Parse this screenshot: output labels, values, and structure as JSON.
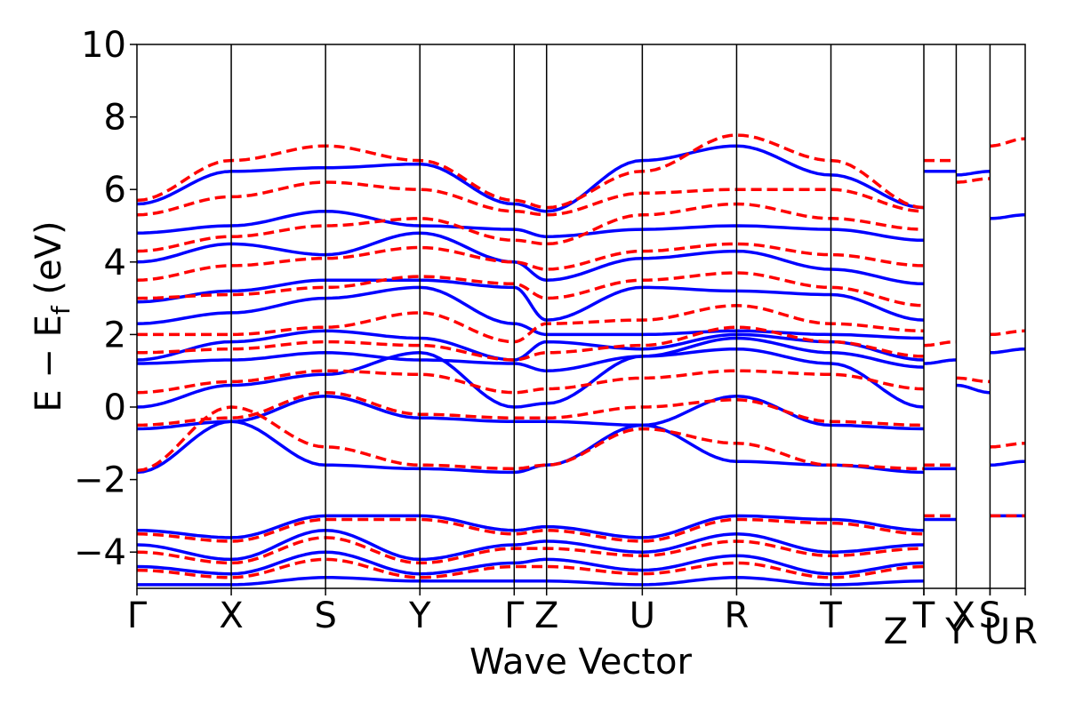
{
  "chart_data": {
    "type": "line",
    "title": "",
    "xlabel": "Wave Vector",
    "ylabel_parts": {
      "base": "E − E",
      "subscript": "f",
      "unit": " (eV)"
    },
    "ylim": [
      -5,
      10
    ],
    "yticks": [
      -4,
      -2,
      0,
      2,
      4,
      6,
      8,
      10
    ],
    "yticklabels": [
      "−4",
      "−2",
      "0",
      "2",
      "4",
      "6",
      "8",
      "10"
    ],
    "xlim": [
      0,
      6.31
    ],
    "kpath": [
      {
        "label": "Γ",
        "x": 0.0
      },
      {
        "label": "X",
        "x": 0.67
      },
      {
        "label": "S",
        "x": 1.34
      },
      {
        "label": "Y",
        "x": 2.01
      },
      {
        "label": "Γ",
        "x": 2.68
      },
      {
        "label": "Z",
        "x": 2.91
      },
      {
        "label": "U",
        "x": 3.59
      },
      {
        "label": "R",
        "x": 4.26
      },
      {
        "label": "T",
        "x": 4.93
      },
      {
        "label": "Z",
        "x": 5.59
      },
      {
        "label": "T",
        "x": 5.59
      },
      {
        "label": "Y",
        "x": 5.82
      },
      {
        "label": "X",
        "x": 5.82
      },
      {
        "label": "U",
        "x": 6.06
      },
      {
        "label": "S",
        "x": 6.06
      },
      {
        "label": "R",
        "x": 6.31
      }
    ],
    "tick_label_offsets": {
      "9": -0.2,
      "10": 0.0,
      "11": 0.0,
      "12": 0.05,
      "13": 0.05,
      "14": 0.0,
      "15": 0.0
    },
    "path_breaks": [
      5.59,
      5.82,
      6.06
    ],
    "series": [
      {
        "style": "solid",
        "color": "#0000ff",
        "bands": [
          {
            "x": [
              0,
              0.67,
              1.34,
              2.01,
              2.68,
              2.91,
              3.59,
              4.26,
              4.93,
              5.59
            ],
            "y": [
              -1.8,
              -0.4,
              -1.6,
              -1.7,
              -1.8,
              -1.6,
              -0.5,
              -1.5,
              -1.6,
              -1.8
            ]
          },
          {
            "x": [
              0,
              0.67,
              1.34,
              2.01,
              2.68,
              2.91,
              3.59,
              4.26,
              4.93,
              5.59
            ],
            "y": [
              -0.6,
              -0.4,
              0.3,
              -0.3,
              -0.4,
              -0.4,
              -0.5,
              0.3,
              -0.5,
              -0.6
            ]
          },
          {
            "x": [
              0,
              0.67,
              1.34,
              2.01,
              2.68,
              2.91,
              3.59,
              4.26,
              4.93,
              5.59
            ],
            "y": [
              0.0,
              0.6,
              0.9,
              1.5,
              0.0,
              0.1,
              1.4,
              1.6,
              1.2,
              0.0
            ]
          },
          {
            "x": [
              0,
              0.67,
              1.34,
              2.01,
              2.68,
              2.91,
              3.59,
              4.26,
              4.93,
              5.59
            ],
            "y": [
              1.2,
              1.3,
              1.5,
              1.3,
              1.2,
              1.0,
              1.4,
              1.9,
              1.5,
              1.1
            ]
          },
          {
            "x": [
              0,
              0.67,
              1.34,
              2.01,
              2.68,
              2.91,
              3.59,
              4.26,
              4.93,
              5.59
            ],
            "y": [
              1.3,
              1.8,
              2.1,
              1.9,
              1.3,
              1.8,
              1.6,
              2.0,
              1.8,
              1.3
            ]
          },
          {
            "x": [
              0,
              0.67,
              1.34,
              2.01,
              2.68,
              2.91,
              3.59,
              4.26,
              4.93,
              5.59
            ],
            "y": [
              2.3,
              2.6,
              3.0,
              3.3,
              2.3,
              2.0,
              2.0,
              2.1,
              2.0,
              1.9
            ]
          },
          {
            "x": [
              0,
              0.67,
              1.34,
              2.01,
              2.68,
              2.91,
              3.59,
              4.26,
              4.93,
              5.59
            ],
            "y": [
              2.9,
              3.2,
              3.5,
              3.5,
              3.3,
              2.4,
              3.3,
              3.2,
              3.1,
              2.4
            ]
          },
          {
            "x": [
              0,
              0.67,
              1.34,
              2.01,
              2.68,
              2.91,
              3.59,
              4.26,
              4.93,
              5.59
            ],
            "y": [
              4.0,
              4.5,
              4.2,
              4.8,
              4.0,
              3.5,
              4.1,
              4.3,
              3.8,
              3.4
            ]
          },
          {
            "x": [
              0,
              0.67,
              1.34,
              2.01,
              2.68,
              2.91,
              3.59,
              4.26,
              4.93,
              5.59
            ],
            "y": [
              4.8,
              5.0,
              5.4,
              5.0,
              4.9,
              4.7,
              4.9,
              5.0,
              4.9,
              4.6
            ]
          },
          {
            "x": [
              0,
              0.67,
              1.34,
              2.01,
              2.68,
              2.91,
              3.59,
              4.26,
              4.93,
              5.59
            ],
            "y": [
              5.6,
              6.5,
              6.6,
              6.7,
              5.6,
              5.4,
              6.8,
              7.2,
              6.4,
              5.5
            ]
          },
          {
            "x": [
              0,
              0.67,
              1.34,
              2.01,
              2.68,
              2.91,
              3.59,
              4.26,
              4.93,
              5.59
            ],
            "y": [
              -3.4,
              -3.6,
              -3.0,
              -3.0,
              -3.4,
              -3.3,
              -3.6,
              -3.0,
              -3.1,
              -3.4
            ]
          },
          {
            "x": [
              0,
              0.67,
              1.34,
              2.01,
              2.68,
              2.91,
              3.59,
              4.26,
              4.93,
              5.59
            ],
            "y": [
              -3.8,
              -4.2,
              -3.4,
              -4.2,
              -3.8,
              -3.7,
              -4.0,
              -3.5,
              -4.0,
              -3.8
            ]
          },
          {
            "x": [
              0,
              0.67,
              1.34,
              2.01,
              2.68,
              2.91,
              3.59,
              4.26,
              4.93,
              5.59
            ],
            "y": [
              -4.4,
              -4.6,
              -4.0,
              -4.6,
              -4.3,
              -4.2,
              -4.5,
              -4.1,
              -4.6,
              -4.3
            ]
          },
          {
            "x": [
              0,
              0.67,
              1.34,
              2.01,
              2.68,
              2.91,
              3.59,
              4.26,
              4.93,
              5.59
            ],
            "y": [
              -4.9,
              -4.9,
              -4.7,
              -4.8,
              -4.8,
              -4.8,
              -4.9,
              -4.7,
              -4.9,
              -4.8
            ]
          },
          {
            "x": [
              5.59,
              5.82
            ],
            "y": [
              -1.7,
              -1.7
            ]
          },
          {
            "x": [
              5.59,
              5.82
            ],
            "y": [
              1.2,
              1.3
            ]
          },
          {
            "x": [
              5.59,
              5.82
            ],
            "y": [
              6.5,
              6.5
            ]
          },
          {
            "x": [
              5.59,
              5.82
            ],
            "y": [
              -3.1,
              -3.1
            ]
          },
          {
            "x": [
              5.82,
              6.06
            ],
            "y": [
              0.6,
              0.4
            ]
          },
          {
            "x": [
              5.82,
              6.06
            ],
            "y": [
              6.4,
              6.5
            ]
          },
          {
            "x": [
              6.06,
              6.31
            ],
            "y": [
              -1.6,
              -1.5
            ]
          },
          {
            "x": [
              6.06,
              6.31
            ],
            "y": [
              1.5,
              1.6
            ]
          },
          {
            "x": [
              6.06,
              6.31
            ],
            "y": [
              5.2,
              5.3
            ]
          },
          {
            "x": [
              6.06,
              6.31
            ],
            "y": [
              -3.0,
              -3.0
            ]
          }
        ]
      },
      {
        "style": "dashed",
        "color": "#ff0000",
        "bands": [
          {
            "x": [
              0,
              0.67,
              1.34,
              2.01,
              2.68,
              2.91,
              3.59,
              4.26,
              4.93,
              5.59
            ],
            "y": [
              -1.75,
              0.0,
              -1.1,
              -1.6,
              -1.7,
              -1.6,
              -0.6,
              -1.0,
              -1.6,
              -1.7
            ]
          },
          {
            "x": [
              0,
              0.67,
              1.34,
              2.01,
              2.68,
              2.91,
              3.59,
              4.26,
              4.93,
              5.59
            ],
            "y": [
              -0.5,
              -0.3,
              0.4,
              -0.2,
              -0.3,
              -0.3,
              0.0,
              0.2,
              -0.4,
              -0.5
            ]
          },
          {
            "x": [
              0,
              0.67,
              1.34,
              2.01,
              2.68,
              2.91,
              3.59,
              4.26,
              4.93,
              5.59
            ],
            "y": [
              0.4,
              0.7,
              1.0,
              0.9,
              0.4,
              0.5,
              0.8,
              1.0,
              0.9,
              0.5
            ]
          },
          {
            "x": [
              0,
              0.67,
              1.34,
              2.01,
              2.68,
              2.91,
              3.59,
              4.26,
              4.93,
              5.59
            ],
            "y": [
              1.5,
              1.6,
              1.8,
              1.7,
              1.3,
              1.5,
              1.7,
              2.2,
              1.8,
              1.4
            ]
          },
          {
            "x": [
              0,
              0.67,
              1.34,
              2.01,
              2.68,
              2.91,
              3.59,
              4.26,
              4.93,
              5.59
            ],
            "y": [
              2.0,
              2.0,
              2.2,
              2.6,
              1.8,
              2.3,
              2.4,
              2.8,
              2.3,
              2.1
            ]
          },
          {
            "x": [
              0,
              0.67,
              1.34,
              2.01,
              2.68,
              2.91,
              3.59,
              4.26,
              4.93,
              5.59
            ],
            "y": [
              3.0,
              3.1,
              3.3,
              3.6,
              3.4,
              3.0,
              3.5,
              3.7,
              3.3,
              2.8
            ]
          },
          {
            "x": [
              0,
              0.67,
              1.34,
              2.01,
              2.68,
              2.91,
              3.59,
              4.26,
              4.93,
              5.59
            ],
            "y": [
              3.5,
              3.9,
              4.1,
              4.4,
              4.0,
              3.8,
              4.3,
              4.5,
              4.2,
              3.9
            ]
          },
          {
            "x": [
              0,
              0.67,
              1.34,
              2.01,
              2.68,
              2.91,
              3.59,
              4.26,
              4.93,
              5.59
            ],
            "y": [
              4.3,
              4.7,
              5.0,
              5.2,
              4.6,
              4.5,
              5.3,
              5.6,
              5.2,
              4.9
            ]
          },
          {
            "x": [
              0,
              0.67,
              1.34,
              2.01,
              2.68,
              2.91,
              3.59,
              4.26,
              4.93,
              5.59
            ],
            "y": [
              5.3,
              5.8,
              6.2,
              6.0,
              5.4,
              5.3,
              5.9,
              6.0,
              6.0,
              5.4
            ]
          },
          {
            "x": [
              0,
              0.67,
              1.34,
              2.01,
              2.68,
              2.91,
              3.59,
              4.26,
              4.93,
              5.59
            ],
            "y": [
              5.7,
              6.8,
              7.2,
              6.8,
              5.7,
              5.5,
              6.5,
              7.5,
              6.8,
              5.5
            ]
          },
          {
            "x": [
              0,
              0.67,
              1.34,
              2.01,
              2.68,
              2.91,
              3.59,
              4.26,
              4.93,
              5.59
            ],
            "y": [
              -3.5,
              -3.7,
              -3.1,
              -3.1,
              -3.5,
              -3.4,
              -3.7,
              -3.1,
              -3.2,
              -3.5
            ]
          },
          {
            "x": [
              0,
              0.67,
              1.34,
              2.01,
              2.68,
              2.91,
              3.59,
              4.26,
              4.93,
              5.59
            ],
            "y": [
              -4.0,
              -4.3,
              -3.6,
              -4.3,
              -3.9,
              -3.9,
              -4.1,
              -3.7,
              -4.1,
              -3.9
            ]
          },
          {
            "x": [
              0,
              0.67,
              1.34,
              2.01,
              2.68,
              2.91,
              3.59,
              4.26,
              4.93,
              5.59
            ],
            "y": [
              -4.5,
              -4.7,
              -4.2,
              -4.7,
              -4.4,
              -4.4,
              -4.6,
              -4.3,
              -4.7,
              -4.4
            ]
          },
          {
            "x": [
              5.59,
              5.82
            ],
            "y": [
              -1.6,
              -1.6
            ]
          },
          {
            "x": [
              5.59,
              5.82
            ],
            "y": [
              1.7,
              1.8
            ]
          },
          {
            "x": [
              5.59,
              5.82
            ],
            "y": [
              6.8,
              6.8
            ]
          },
          {
            "x": [
              5.59,
              5.82
            ],
            "y": [
              -3.0,
              -3.0
            ]
          },
          {
            "x": [
              5.82,
              6.06
            ],
            "y": [
              0.8,
              0.7
            ]
          },
          {
            "x": [
              5.82,
              6.06
            ],
            "y": [
              6.2,
              6.3
            ]
          },
          {
            "x": [
              6.06,
              6.31
            ],
            "y": [
              -1.1,
              -1.0
            ]
          },
          {
            "x": [
              6.06,
              6.31
            ],
            "y": [
              2.0,
              2.1
            ]
          },
          {
            "x": [
              6.06,
              6.31
            ],
            "y": [
              7.2,
              7.4
            ]
          },
          {
            "x": [
              6.06,
              6.31
            ],
            "y": [
              -3.0,
              -3.0
            ]
          }
        ]
      }
    ]
  }
}
